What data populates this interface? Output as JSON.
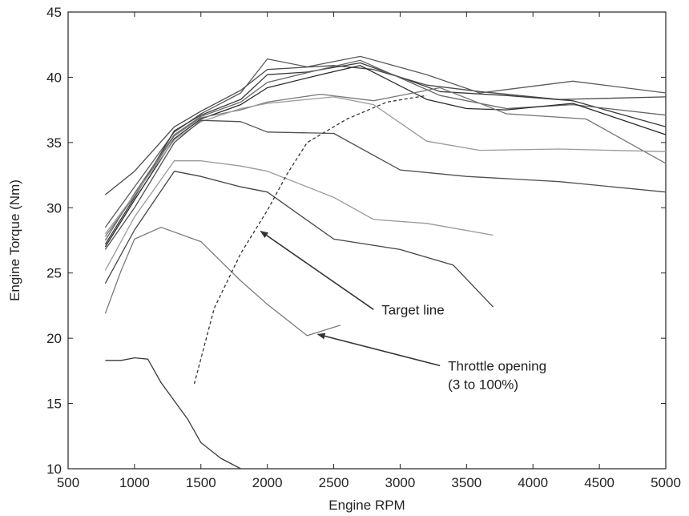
{
  "chart_data": {
    "type": "line",
    "title": "",
    "xlabel": "Engine RPM",
    "ylabel": "Engine Torque (Nm)",
    "xlim": [
      500,
      5000
    ],
    "ylim": [
      10,
      45
    ],
    "xticks": [
      500,
      1000,
      1500,
      2000,
      2500,
      3000,
      3500,
      4000,
      4500,
      5000
    ],
    "yticks": [
      10,
      15,
      20,
      25,
      30,
      35,
      40,
      45
    ],
    "grid": false,
    "legend": "none",
    "series": [
      {
        "color": "#4a4a4a",
        "points": [
          [
            780,
            31
          ],
          [
            1000,
            32.8
          ],
          [
            1300,
            36.2
          ],
          [
            1500,
            37.4
          ],
          [
            1800,
            39
          ],
          [
            2000,
            40.6
          ],
          [
            2500,
            40.9
          ],
          [
            2800,
            40.6
          ],
          [
            3200,
            39.4
          ],
          [
            3600,
            38.9
          ],
          [
            4200,
            38.3
          ],
          [
            5000,
            38.5
          ]
        ]
      },
      {
        "color": "#5a5a5a",
        "points": [
          [
            780,
            28.5
          ],
          [
            1000,
            31.6
          ],
          [
            1300,
            35.8
          ],
          [
            1500,
            37.2
          ],
          [
            1800,
            38.8
          ],
          [
            2000,
            41.4
          ],
          [
            2300,
            40.8
          ],
          [
            2700,
            41.6
          ],
          [
            3200,
            40.2
          ],
          [
            3600,
            38.8
          ],
          [
            4300,
            39.7
          ],
          [
            5000,
            38.8
          ]
        ]
      },
      {
        "color": "#3a3a3a",
        "points": [
          [
            780,
            27.2
          ],
          [
            1000,
            30.8
          ],
          [
            1300,
            35.9
          ],
          [
            1500,
            37.1
          ],
          [
            1800,
            38.3
          ],
          [
            2000,
            40.2
          ],
          [
            2300,
            40.4
          ],
          [
            2700,
            41.1
          ],
          [
            3300,
            38.9
          ],
          [
            3800,
            38.6
          ],
          [
            4300,
            38.2
          ],
          [
            5000,
            36.2
          ]
        ]
      },
      {
        "color": "#666666",
        "points": [
          [
            780,
            27.5
          ],
          [
            1000,
            31.1
          ],
          [
            1300,
            35.6
          ],
          [
            1500,
            37.0
          ],
          [
            1800,
            38.1
          ],
          [
            2000,
            39.6
          ],
          [
            2400,
            40.6
          ],
          [
            2700,
            41.3
          ],
          [
            3300,
            38.6
          ],
          [
            3800,
            37.6
          ],
          [
            4300,
            37.9
          ],
          [
            5000,
            37.1
          ]
        ]
      },
      {
        "color": "#2a2a2a",
        "points": [
          [
            780,
            27.0
          ],
          [
            1000,
            30.6
          ],
          [
            1300,
            35.3
          ],
          [
            1500,
            36.8
          ],
          [
            1800,
            37.9
          ],
          [
            2000,
            39.2
          ],
          [
            2400,
            40.2
          ],
          [
            2700,
            40.9
          ],
          [
            3200,
            38.3
          ],
          [
            3500,
            37.6
          ],
          [
            3800,
            37.5
          ],
          [
            4300,
            38.0
          ],
          [
            5000,
            35.6
          ]
        ]
      },
      {
        "color": "#777777",
        "points": [
          [
            780,
            27.8
          ],
          [
            1000,
            30.9
          ],
          [
            1300,
            35.5
          ],
          [
            1500,
            36.9
          ],
          [
            1800,
            37.5
          ],
          [
            2000,
            38.1
          ],
          [
            2400,
            38.7
          ],
          [
            2800,
            38.2
          ],
          [
            3300,
            39.2
          ],
          [
            3800,
            37.2
          ],
          [
            4400,
            36.8
          ],
          [
            5000,
            33.4
          ]
        ]
      },
      {
        "color": "#9a9a9a",
        "points": [
          [
            780,
            28.0
          ],
          [
            1000,
            31.0
          ],
          [
            1300,
            35.2
          ],
          [
            1500,
            36.6
          ],
          [
            1800,
            37.6
          ],
          [
            2000,
            38.0
          ],
          [
            2500,
            38.5
          ],
          [
            2800,
            37.9
          ],
          [
            3200,
            35.1
          ],
          [
            3600,
            34.4
          ],
          [
            4200,
            34.5
          ],
          [
            5000,
            34.3
          ]
        ]
      },
      {
        "color": "#505050",
        "points": [
          [
            780,
            26.8
          ],
          [
            1000,
            30.0
          ],
          [
            1300,
            35.0
          ],
          [
            1500,
            36.7
          ],
          [
            1800,
            36.6
          ],
          [
            2000,
            35.8
          ],
          [
            2500,
            35.7
          ],
          [
            3000,
            32.9
          ],
          [
            3500,
            32.4
          ],
          [
            4200,
            32.0
          ],
          [
            5000,
            31.2
          ]
        ]
      },
      {
        "color": "#999999",
        "points": [
          [
            780,
            25.2
          ],
          [
            1000,
            29.3
          ],
          [
            1300,
            33.6
          ],
          [
            1500,
            33.6
          ],
          [
            1800,
            33.2
          ],
          [
            2000,
            32.8
          ],
          [
            2500,
            30.8
          ],
          [
            2800,
            29.1
          ],
          [
            3200,
            28.8
          ],
          [
            3700,
            27.9
          ]
        ]
      },
      {
        "color": "#444444",
        "points": [
          [
            780,
            24.2
          ],
          [
            1000,
            28.3
          ],
          [
            1300,
            32.8
          ],
          [
            1500,
            32.4
          ],
          [
            1800,
            31.6
          ],
          [
            2000,
            31.2
          ],
          [
            2500,
            27.6
          ],
          [
            3000,
            26.8
          ],
          [
            3400,
            25.6
          ],
          [
            3700,
            22.4
          ]
        ]
      },
      {
        "color": "#7a7a7a",
        "points": [
          [
            780,
            21.9
          ],
          [
            900,
            25.2
          ],
          [
            1000,
            27.6
          ],
          [
            1200,
            28.5
          ],
          [
            1500,
            27.4
          ],
          [
            1800,
            24.4
          ],
          [
            2000,
            22.6
          ],
          [
            2300,
            20.2
          ],
          [
            2550,
            21.0
          ]
        ]
      },
      {
        "color": "#3a3a3a",
        "points": [
          [
            780,
            18.3
          ],
          [
            900,
            18.3
          ],
          [
            1000,
            18.5
          ],
          [
            1100,
            18.4
          ],
          [
            1200,
            16.6
          ],
          [
            1400,
            13.8
          ],
          [
            1500,
            12.0
          ],
          [
            1650,
            10.8
          ],
          [
            1800,
            10.0
          ]
        ]
      }
    ],
    "target_line": {
      "color": "#333333",
      "points": [
        [
          1450,
          16.5
        ],
        [
          1600,
          22.3
        ],
        [
          1800,
          26.5
        ],
        [
          2000,
          29.8
        ],
        [
          2150,
          32.6
        ],
        [
          2300,
          35.0
        ],
        [
          2600,
          36.8
        ],
        [
          2900,
          38.1
        ],
        [
          3200,
          38.6
        ]
      ]
    },
    "annotations": [
      {
        "text": "Target line",
        "lines": [
          "Target line"
        ],
        "arrow_from": [
          2800,
          22.2
        ],
        "arrow_to": [
          1950,
          28.2
        ]
      },
      {
        "text": "Throttle opening (3 to 100%)",
        "lines": [
          "Throttle opening",
          "(3 to 100%)"
        ],
        "arrow_from": [
          3300,
          17.9
        ],
        "arrow_to": [
          2380,
          20.3
        ]
      }
    ]
  }
}
